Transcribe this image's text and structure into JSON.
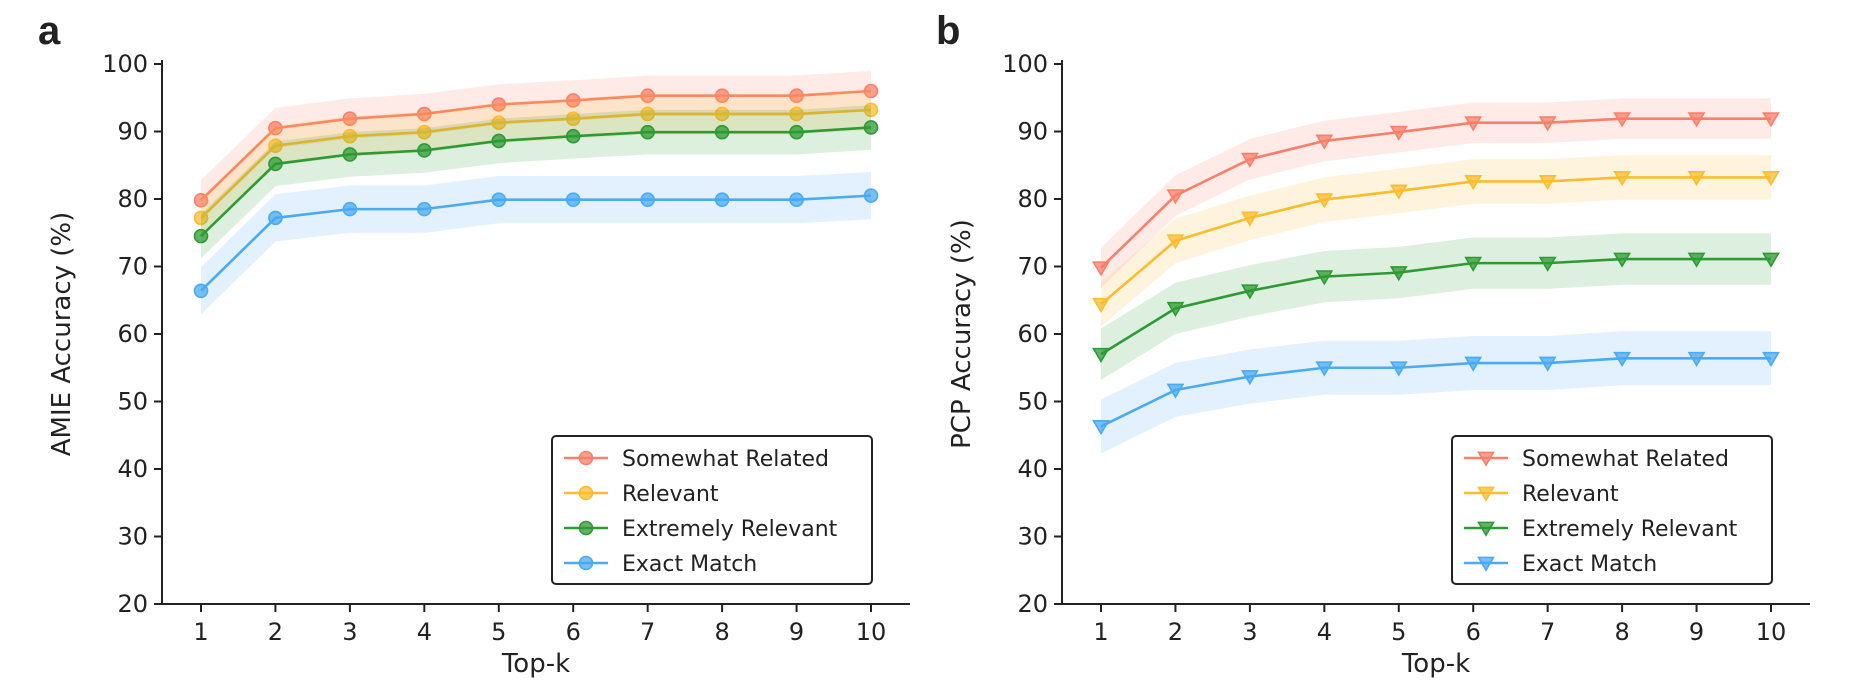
{
  "chart_data": [
    {
      "type": "line",
      "panel_label": "a",
      "xlabel": "Top-k",
      "ylabel": "AMIE Accuracy (%)",
      "x": [
        1,
        2,
        3,
        4,
        5,
        6,
        7,
        8,
        9,
        10
      ],
      "x_ticks": [
        "1",
        "2",
        "3",
        "4",
        "5",
        "6",
        "7",
        "8",
        "9",
        "10"
      ],
      "ylim": [
        20,
        100
      ],
      "y_ticks": [
        "20",
        "30",
        "40",
        "50",
        "60",
        "70",
        "80",
        "90",
        "100"
      ],
      "marker": "circle",
      "grid": false,
      "legend_position": "lower-right",
      "shaded_band": true,
      "series": [
        {
          "name": "Somewhat Related",
          "color": "#F8806B",
          "values": [
            79.8,
            90.5,
            91.9,
            92.6,
            94.0,
            94.6,
            95.3,
            95.3,
            95.3,
            96.0
          ],
          "band": 3.0
        },
        {
          "name": "Relevant",
          "color": "#FBBC2E",
          "values": [
            77.2,
            87.9,
            89.3,
            89.9,
            91.3,
            91.9,
            92.6,
            92.6,
            92.6,
            93.2
          ],
          "band": 3.0
        },
        {
          "name": "Extremely Relevant",
          "color": "#2E9A34",
          "values": [
            74.5,
            85.2,
            86.6,
            87.2,
            88.6,
            89.3,
            89.9,
            89.9,
            89.9,
            90.6
          ],
          "band": 3.3
        },
        {
          "name": "Exact Match",
          "color": "#4AAAF2",
          "values": [
            66.4,
            77.2,
            78.5,
            78.5,
            79.9,
            79.9,
            79.9,
            79.9,
            79.9,
            80.5
          ],
          "band": 3.5
        }
      ]
    },
    {
      "type": "line",
      "panel_label": "b",
      "xlabel": "Top-k",
      "ylabel": "PCP Accuracy (%)",
      "x": [
        1,
        2,
        3,
        4,
        5,
        6,
        7,
        8,
        9,
        10
      ],
      "x_ticks": [
        "1",
        "2",
        "3",
        "4",
        "5",
        "6",
        "7",
        "8",
        "9",
        "10"
      ],
      "ylim": [
        20,
        100
      ],
      "y_ticks": [
        "20",
        "30",
        "40",
        "50",
        "60",
        "70",
        "80",
        "90",
        "100"
      ],
      "marker": "triangle-down",
      "grid": false,
      "legend_position": "lower-right",
      "shaded_band": true,
      "series": [
        {
          "name": "Somewhat Related",
          "color": "#F8806B",
          "values": [
            69.8,
            80.5,
            85.9,
            88.6,
            89.9,
            91.3,
            91.3,
            91.9,
            91.9,
            91.9
          ],
          "band": 3.0
        },
        {
          "name": "Relevant",
          "color": "#FBBC2E",
          "values": [
            64.4,
            73.8,
            77.2,
            79.9,
            81.2,
            82.6,
            82.6,
            83.2,
            83.2,
            83.2
          ],
          "band": 3.3
        },
        {
          "name": "Extremely Relevant",
          "color": "#2E9A34",
          "values": [
            57.0,
            63.8,
            66.4,
            68.5,
            69.1,
            70.5,
            70.5,
            71.1,
            71.1,
            71.1
          ],
          "band": 3.8
        },
        {
          "name": "Exact Match",
          "color": "#4AAAF2",
          "values": [
            46.3,
            51.7,
            53.7,
            55.0,
            55.0,
            55.7,
            55.7,
            56.4,
            56.4,
            56.4
          ],
          "band": 4.0
        }
      ]
    }
  ]
}
